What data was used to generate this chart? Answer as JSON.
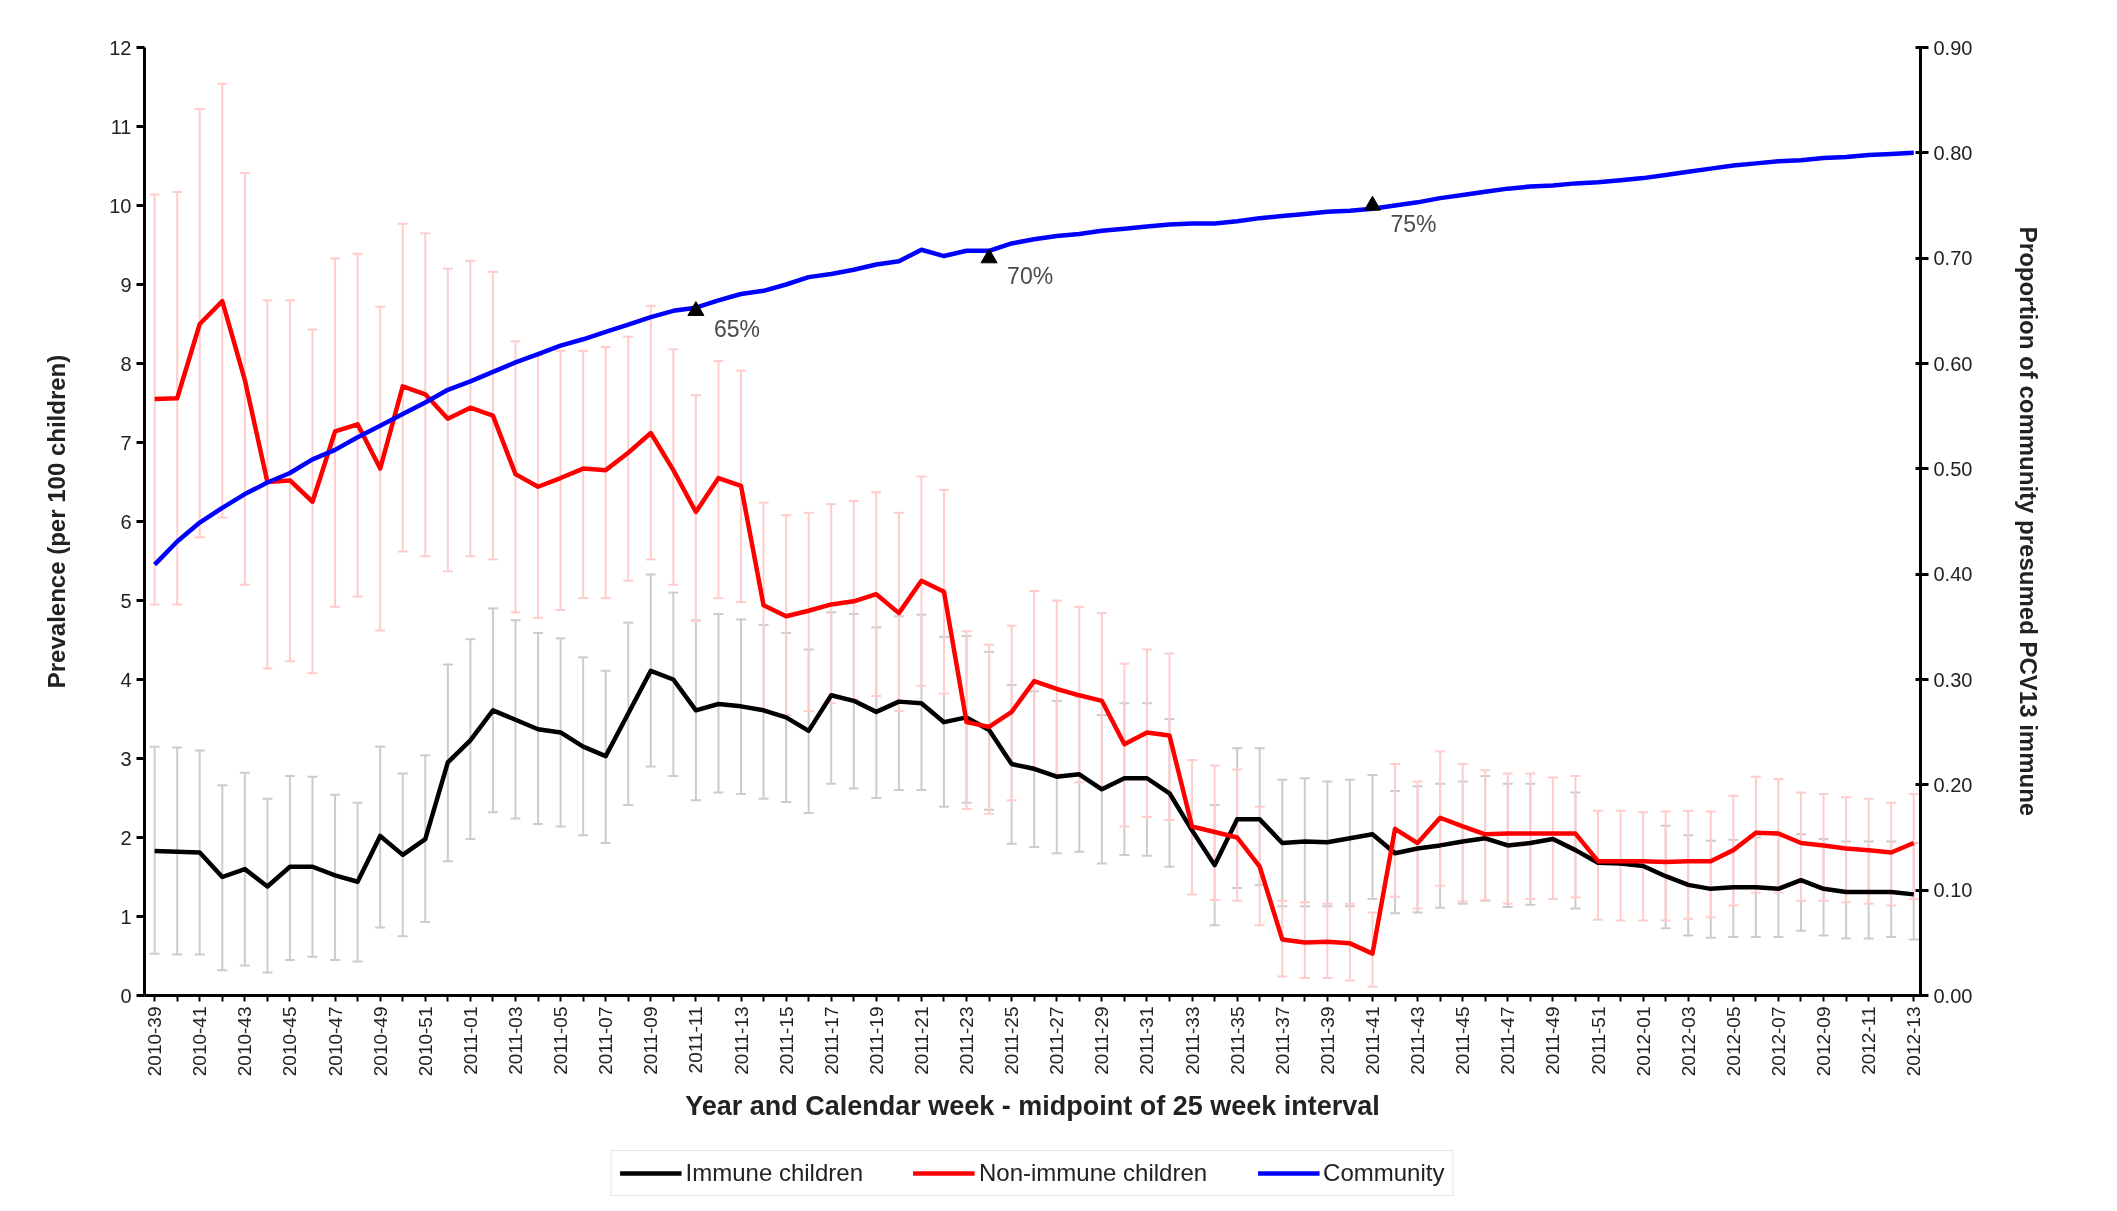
{
  "chart_data": {
    "type": "line",
    "xlabel": "Year and Calendar week - midpoint of 25 week interval",
    "ylabel": "Prevalence (per 100 children)",
    "y2label": "Proportion of community presumed PCV13 immune",
    "categories": [
      "2010-39",
      null,
      "2010-41",
      null,
      "2010-43",
      null,
      "2010-45",
      null,
      "2010-47",
      null,
      "2010-49",
      null,
      "2010-51",
      null,
      "2011-01",
      null,
      "2011-03",
      null,
      "2011-05",
      null,
      "2011-07",
      null,
      "2011-09",
      null,
      "2011-11",
      null,
      "2011-13",
      null,
      "2011-15",
      null,
      "2011-17",
      null,
      "2011-19",
      null,
      "2011-21",
      null,
      "2011-23",
      null,
      "2011-25",
      null,
      "2011-27",
      null,
      "2011-29",
      null,
      "2011-31",
      null,
      "2011-33",
      null,
      "2011-35",
      null,
      "2011-37",
      null,
      "2011-39",
      null,
      "2011-41",
      null,
      "2011-43",
      null,
      "2011-45",
      null,
      "2011-47",
      null,
      "2011-49",
      null,
      "2011-51",
      null,
      "2012-01",
      null,
      "2012-03",
      null,
      "2012-05",
      null,
      "2012-07",
      null,
      "2012-09",
      null,
      "2012-11",
      null,
      "2012-13"
    ],
    "ylim": [
      0,
      12
    ],
    "yticks": [
      0,
      1,
      2,
      3,
      4,
      5,
      6,
      7,
      8,
      9,
      10,
      11,
      12
    ],
    "y2lim": [
      0,
      0.9
    ],
    "y2ticks": [
      {
        "value": 0,
        "label": "0.00"
      },
      {
        "value": 0.1,
        "label": "0.10"
      },
      {
        "value": 0.2,
        "label": "0.20"
      },
      {
        "value": 0.3,
        "label": "0.30"
      },
      {
        "value": 0.4,
        "label": "0.40"
      },
      {
        "value": 0.5,
        "label": "0.50"
      },
      {
        "value": 0.6,
        "label": "0.60"
      },
      {
        "value": 0.7,
        "label": "0.70"
      },
      {
        "value": 0.8,
        "label": "0.80"
      },
      {
        "value": 0.9,
        "label": "0.90"
      }
    ],
    "grid": false,
    "legend": "bottom",
    "marker": "none",
    "line_style": "solid",
    "series": [
      {
        "name": "Immune children",
        "color": "#000000",
        "values": [
          1.83,
          1.82,
          1.81,
          1.5,
          1.6,
          1.38,
          1.63,
          1.63,
          1.52,
          1.44,
          2.02,
          1.78,
          1.98,
          2.95,
          3.23,
          3.61,
          3.49,
          3.37,
          3.33,
          3.15,
          3.03,
          3.57,
          4.11,
          4.0,
          3.61,
          3.69,
          3.66,
          3.61,
          3.52,
          3.35,
          3.8,
          3.73,
          3.59,
          3.72,
          3.7,
          3.46,
          3.52,
          3.36,
          2.93,
          2.87,
          2.77,
          2.8,
          2.61,
          2.75,
          2.75,
          2.56,
          2.09,
          1.65,
          2.23,
          2.23,
          1.93,
          1.95,
          1.94,
          1.99,
          2.04,
          1.8,
          1.86,
          1.9,
          1.95,
          1.99,
          1.9,
          1.93,
          1.98,
          1.84,
          1.68,
          1.67,
          1.64,
          1.51,
          1.4,
          1.35,
          1.37,
          1.37,
          1.35,
          1.46,
          1.35,
          1.31,
          1.31,
          1.31,
          1.28
        ],
        "errors": [
          [
            0.53,
            3.15
          ],
          [
            0.52,
            3.14
          ],
          [
            0.52,
            3.1
          ],
          [
            0.32,
            2.66
          ],
          [
            0.38,
            2.82
          ],
          [
            0.29,
            2.49
          ],
          [
            0.45,
            2.78
          ],
          [
            0.49,
            2.77
          ],
          [
            0.45,
            2.54
          ],
          [
            0.43,
            2.44
          ],
          [
            0.86,
            3.15
          ],
          [
            0.75,
            2.81
          ],
          [
            0.93,
            3.04
          ],
          [
            1.7,
            4.19
          ],
          [
            1.98,
            4.51
          ],
          [
            2.32,
            4.9
          ],
          [
            2.24,
            4.75
          ],
          [
            2.17,
            4.59
          ],
          [
            2.14,
            4.52
          ],
          [
            2.03,
            4.28
          ],
          [
            1.93,
            4.11
          ],
          [
            2.41,
            4.72
          ],
          [
            2.9,
            5.33
          ],
          [
            2.78,
            5.1
          ],
          [
            2.47,
            4.75
          ],
          [
            2.57,
            4.83
          ],
          [
            2.55,
            4.76
          ],
          [
            2.49,
            4.69
          ],
          [
            2.45,
            4.59
          ],
          [
            2.31,
            4.38
          ],
          [
            2.68,
            4.85
          ],
          [
            2.62,
            4.83
          ],
          [
            2.5,
            4.66
          ],
          [
            2.6,
            4.8
          ],
          [
            2.6,
            4.82
          ],
          [
            2.39,
            4.54
          ],
          [
            2.44,
            4.55
          ],
          [
            2.35,
            4.35
          ],
          [
            1.92,
            3.93
          ],
          [
            1.88,
            3.85
          ],
          [
            1.8,
            3.73
          ],
          [
            1.82,
            3.78
          ],
          [
            1.67,
            3.55
          ],
          [
            1.78,
            3.7
          ],
          [
            1.77,
            3.7
          ],
          [
            1.63,
            3.5
          ],
          null,
          [
            0.89,
            2.41
          ],
          [
            1.36,
            3.13
          ],
          [
            1.4,
            3.13
          ],
          [
            1.13,
            2.73
          ],
          [
            1.13,
            2.75
          ],
          [
            1.13,
            2.71
          ],
          [
            1.13,
            2.73
          ],
          [
            1.22,
            2.79
          ],
          [
            1.04,
            2.59
          ],
          [
            1.05,
            2.65
          ],
          [
            1.11,
            2.68
          ],
          [
            1.16,
            2.71
          ],
          [
            1.2,
            2.78
          ],
          [
            1.12,
            2.68
          ],
          [
            1.15,
            2.68
          ],
          null,
          [
            1.1,
            2.57
          ],
          null,
          null,
          null,
          [
            0.85,
            2.15
          ],
          [
            0.76,
            2.03
          ],
          [
            0.73,
            1.96
          ],
          [
            0.74,
            1.97
          ],
          [
            0.74,
            2.0
          ],
          [
            0.74,
            2.03
          ],
          [
            0.82,
            2.04
          ],
          [
            0.76,
            1.98
          ],
          [
            0.72,
            1.95
          ],
          [
            0.72,
            1.95
          ],
          [
            0.74,
            1.95
          ],
          [
            0.71,
            1.93
          ]
        ]
      },
      {
        "name": "Non-immune children",
        "color": "#ff0000",
        "values": [
          7.55,
          7.56,
          8.5,
          8.79,
          7.79,
          6.5,
          6.52,
          6.25,
          7.14,
          7.23,
          6.67,
          7.71,
          7.61,
          7.3,
          7.44,
          7.34,
          6.6,
          6.44,
          6.55,
          6.67,
          6.65,
          6.87,
          7.12,
          6.65,
          6.12,
          6.55,
          6.45,
          4.94,
          4.8,
          4.87,
          4.95,
          4.99,
          5.08,
          4.84,
          5.25,
          5.11,
          3.46,
          3.4,
          3.59,
          3.98,
          3.88,
          3.8,
          3.73,
          3.18,
          3.33,
          3.29,
          2.14,
          2.07,
          2.0,
          1.63,
          0.71,
          0.67,
          0.68,
          0.66,
          0.53,
          2.11,
          1.93,
          2.25,
          2.14,
          2.04,
          2.05,
          2.05,
          2.05,
          2.05,
          1.7,
          1.7,
          1.7,
          1.69,
          1.7,
          1.7,
          1.84,
          2.06,
          2.05,
          1.93,
          1.9,
          1.86,
          1.84,
          1.81,
          1.93
        ],
        "errors": [
          [
            4.95,
            10.14
          ],
          [
            4.95,
            10.17
          ],
          [
            5.8,
            11.22
          ],
          [
            6.05,
            11.54
          ],
          [
            5.2,
            10.41
          ],
          [
            4.14,
            8.8
          ],
          [
            4.23,
            8.8
          ],
          [
            4.08,
            8.43
          ],
          [
            4.92,
            9.33
          ],
          [
            5.05,
            9.39
          ],
          [
            4.62,
            8.72
          ],
          [
            5.62,
            9.77
          ],
          [
            5.56,
            9.65
          ],
          [
            5.37,
            9.2
          ],
          [
            5.56,
            9.3
          ],
          [
            5.52,
            9.16
          ],
          [
            4.85,
            8.28
          ],
          [
            4.78,
            8.1
          ],
          [
            4.88,
            8.16
          ],
          [
            5.03,
            8.16
          ],
          [
            5.03,
            8.21
          ],
          [
            5.25,
            8.34
          ],
          [
            5.52,
            8.73
          ],
          [
            5.2,
            8.18
          ],
          [
            4.74,
            7.6
          ],
          [
            5.03,
            8.03
          ],
          [
            4.98,
            7.91
          ],
          [
            3.6,
            6.24
          ],
          [
            3.55,
            6.08
          ],
          [
            3.6,
            6.11
          ],
          [
            3.7,
            6.22
          ],
          [
            3.75,
            6.26
          ],
          [
            3.79,
            6.37
          ],
          [
            3.6,
            6.11
          ],
          [
            3.92,
            6.57
          ],
          [
            3.82,
            6.4
          ],
          [
            2.36,
            4.61
          ],
          [
            2.3,
            4.44
          ],
          [
            2.47,
            4.68
          ],
          [
            2.85,
            5.12
          ],
          [
            2.8,
            5.0
          ],
          [
            2.7,
            4.92
          ],
          [
            2.62,
            4.84
          ],
          [
            2.14,
            4.2
          ],
          [
            2.26,
            4.38
          ],
          [
            2.22,
            4.33
          ],
          [
            1.28,
            2.98
          ],
          [
            1.21,
            2.91
          ],
          [
            1.2,
            2.86
          ],
          [
            0.89,
            2.39
          ],
          [
            0.24,
            1.2
          ],
          [
            0.22,
            1.18
          ],
          [
            0.22,
            1.16
          ],
          [
            0.19,
            1.16
          ],
          [
            0.11,
            1.05
          ],
          [
            1.25,
            2.93
          ],
          [
            1.1,
            2.71
          ],
          [
            1.39,
            3.09
          ],
          [
            1.19,
            2.93
          ],
          [
            1.21,
            2.85
          ],
          [
            1.16,
            2.81
          ],
          [
            1.22,
            2.81
          ],
          [
            1.22,
            2.76
          ],
          [
            1.24,
            2.78
          ],
          [
            0.96,
            2.34
          ],
          [
            0.95,
            2.34
          ],
          [
            0.95,
            2.32
          ],
          [
            0.95,
            2.33
          ],
          [
            0.97,
            2.34
          ],
          [
            0.99,
            2.33
          ],
          [
            1.14,
            2.53
          ],
          [
            1.3,
            2.77
          ],
          [
            1.3,
            2.74
          ],
          [
            1.2,
            2.57
          ],
          [
            1.2,
            2.55
          ],
          [
            1.18,
            2.51
          ],
          [
            1.16,
            2.49
          ],
          [
            1.14,
            2.44
          ],
          [
            1.22,
            2.55
          ]
        ]
      },
      {
        "name": "Community",
        "color": "#0000ff",
        "axis": "y2",
        "values": [
          0.409,
          0.431,
          0.449,
          0.463,
          0.476,
          0.487,
          0.496,
          0.509,
          0.518,
          0.53,
          0.541,
          0.552,
          0.563,
          0.575,
          0.583,
          0.592,
          0.601,
          0.609,
          0.617,
          0.623,
          0.63,
          0.637,
          0.644,
          0.65,
          0.653,
          0.66,
          0.666,
          0.669,
          0.675,
          0.682,
          0.685,
          0.689,
          0.694,
          0.697,
          0.708,
          0.702,
          0.707,
          0.707,
          0.714,
          0.718,
          0.721,
          0.723,
          0.726,
          0.728,
          0.73,
          0.732,
          0.733,
          0.733,
          0.735,
          0.738,
          0.74,
          0.742,
          0.744,
          0.745,
          0.747,
          0.75,
          0.753,
          0.757,
          0.76,
          0.763,
          0.766,
          0.768,
          0.769,
          0.771,
          0.772,
          0.774,
          0.776,
          0.779,
          0.782,
          0.785,
          0.788,
          0.79,
          0.792,
          0.793,
          0.795,
          0.796,
          0.798,
          0.799,
          0.8
        ]
      },
      {
        "type": "scatter",
        "color": "#000000",
        "axis": "y2",
        "marker": "triangle",
        "values": [
          null,
          null,
          null,
          null,
          null,
          null,
          null,
          null,
          null,
          null,
          null,
          null,
          null,
          null,
          null,
          null,
          null,
          null,
          null,
          null,
          null,
          null,
          null,
          null,
          0.65,
          null,
          null,
          null,
          null,
          null,
          null,
          null,
          null,
          null,
          null,
          null,
          null,
          0.7,
          null,
          null,
          null,
          null,
          null,
          null,
          null,
          null,
          null,
          null,
          null,
          null,
          null,
          null,
          null,
          null,
          0.75,
          null,
          null,
          null,
          null,
          null,
          null,
          null,
          null,
          null,
          null,
          null,
          null,
          null,
          null,
          null,
          null,
          null,
          null,
          null,
          null,
          null,
          null,
          null,
          null
        ],
        "value_labels": [
          null,
          null,
          null,
          null,
          null,
          null,
          null,
          null,
          null,
          null,
          null,
          null,
          null,
          null,
          null,
          null,
          null,
          null,
          null,
          null,
          null,
          null,
          null,
          null,
          "65%",
          null,
          null,
          null,
          null,
          null,
          null,
          null,
          null,
          null,
          null,
          null,
          null,
          "70%",
          null,
          null,
          null,
          null,
          null,
          null,
          null,
          null,
          null,
          null,
          null,
          null,
          null,
          null,
          null,
          null,
          "75%",
          null,
          null,
          null,
          null,
          null,
          null,
          null,
          null,
          null,
          null,
          null,
          null,
          null,
          null,
          null,
          null,
          null,
          null,
          null,
          null,
          null,
          null,
          null,
          null
        ]
      }
    ]
  }
}
